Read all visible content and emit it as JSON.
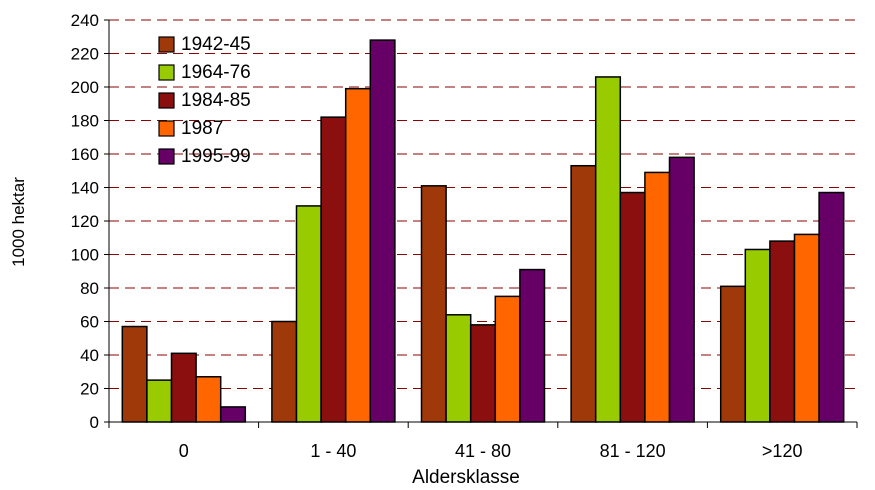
{
  "chart_data": {
    "type": "bar",
    "title": "",
    "xlabel": "Aldersklasse",
    "ylabel": "1000 hektar",
    "ylim": [
      0,
      240
    ],
    "ytick_step": 20,
    "grid": true,
    "legend_position": "top-left",
    "categories": [
      "0",
      "1 - 40",
      "41 - 80",
      "81 - 120",
      ">120"
    ],
    "series": [
      {
        "name": "1942-45",
        "color": "#A0390A",
        "values": [
          57,
          60,
          141,
          153,
          81
        ]
      },
      {
        "name": "1964-76",
        "color": "#99CC00",
        "values": [
          25,
          129,
          64,
          206,
          103
        ]
      },
      {
        "name": "1984-85",
        "color": "#8B0F0F",
        "values": [
          41,
          182,
          58,
          137,
          108
        ]
      },
      {
        "name": "1987",
        "color": "#FF6600",
        "values": [
          27,
          199,
          75,
          149,
          112
        ]
      },
      {
        "name": "1995-99",
        "color": "#660066",
        "values": [
          9,
          228,
          91,
          158,
          137
        ]
      }
    ],
    "gridline_color": "#8B0000"
  }
}
